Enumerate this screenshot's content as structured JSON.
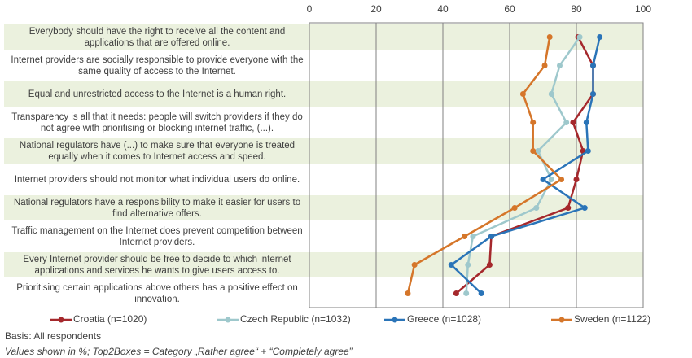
{
  "chart_data": {
    "type": "line",
    "orientation": "horizontal",
    "categories": [
      "Everybody should have the right to receive all the content and applications that are offered online.",
      "Internet providers are socially responsible to provide everyone with the same quality of access to the Internet.",
      "Equal and unrestricted access to the Internet is a human right.",
      "Transparency is all that it needs: people will switch providers if they do not agree with prioritising or blocking internet traffic, (...).",
      "National regulators have (...) to make sure that everyone is treated equally when it comes to Internet access and speed.",
      "Internet providers should not monitor what individual users do online.",
      "National regulators have a responsibility to make it easier for users to find alternative offers.",
      "Traffic management on the Internet does prevent competition between Internet providers.",
      "Every Internet provider should be free to decide to which internet applications and services he wants to give users access to.",
      "Prioritising certain applications above others has a positive effect on innovation."
    ],
    "series": [
      {
        "name": "Croatia (n=1020)",
        "color": "#a5282c",
        "values": [
          80.5,
          85,
          85,
          79,
          82,
          80,
          77.5,
          54.5,
          54,
          44
        ]
      },
      {
        "name": "Czech Republic (n=1032)",
        "color": "#9ec8cc",
        "values": [
          81,
          75,
          72.5,
          77,
          68.5,
          72.5,
          68,
          49,
          47.5,
          47
        ]
      },
      {
        "name": "Greece (n=1028)",
        "color": "#2a74b8",
        "values": [
          87,
          85,
          85,
          83,
          83.5,
          70,
          82.5,
          54.5,
          42.5,
          51.5
        ]
      },
      {
        "name": "Sweden (n=1122)",
        "color": "#d5762a",
        "values": [
          72,
          70.5,
          64,
          67,
          67,
          75.5,
          61.5,
          46.5,
          31.5,
          29.5
        ]
      }
    ],
    "xlim": [
      0,
      100
    ],
    "xticks": [
      0,
      20,
      40,
      60,
      80,
      100
    ],
    "grid": true,
    "band_color": "#ebf1de",
    "notes": [
      "Basis: All respondents",
      "Values shown in %; Top2Boxes = Category „Rather agree“ + “Completely agree”"
    ]
  }
}
